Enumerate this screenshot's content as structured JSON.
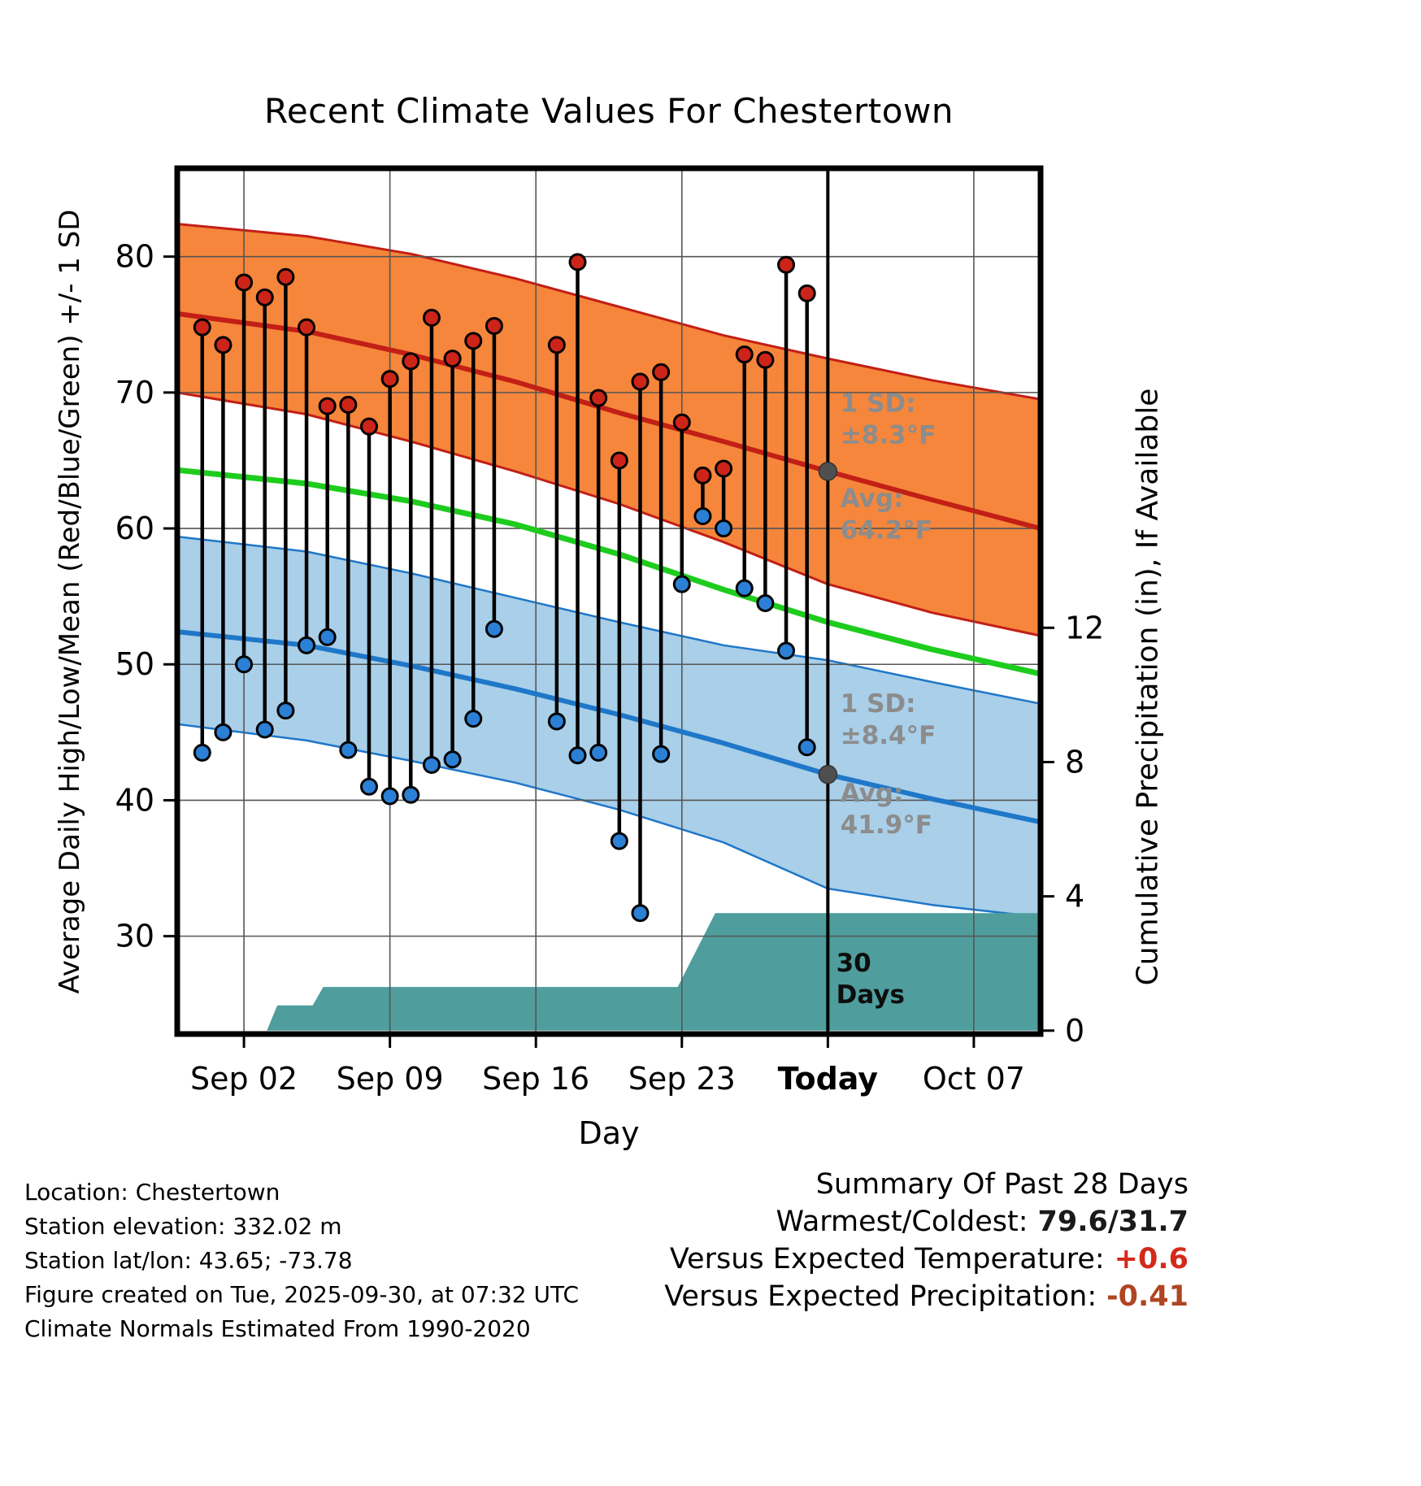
{
  "title": "Recent Climate Values For Chestertown",
  "axes": {
    "y_left_label": "Average Daily High/Low/Mean (Red/Blue/Green) +/- 1 SD",
    "y_right_label": "Cumulative Precipitation (in), If Available",
    "x_label": "Day"
  },
  "footer_lines": [
    "Location: Chestertown",
    "Station elevation: 332.02 m",
    "Station lat/lon: 43.65; -73.78",
    "Figure created on Tue, 2025-09-30, at 07:32 UTC",
    "Climate Normals Estimated From 1990-2020"
  ],
  "summary": {
    "title": "Summary Of Past 28 Days",
    "rows": [
      {
        "label": "Warmest/Coldest:",
        "value": "79.6/31.7",
        "color": "#1a1a1a"
      },
      {
        "label": "Versus Expected Temperature:",
        "value": "+0.6",
        "color": "#d42a1a"
      },
      {
        "label": "Versus Expected Precipitation:",
        "value": "-0.41",
        "color": "#af4523"
      }
    ]
  },
  "chart_data": {
    "type": "line",
    "title": "Recent Climate Values For Chestertown",
    "x_range": [
      -1.2,
      40.2
    ],
    "temp_range": [
      22.8,
      86.5
    ],
    "x_ticks": [
      {
        "day": 2,
        "label": "Sep 02",
        "bold": false
      },
      {
        "day": 9,
        "label": "Sep 09",
        "bold": false
      },
      {
        "day": 16,
        "label": "Sep 16",
        "bold": false
      },
      {
        "day": 23,
        "label": "Sep 23",
        "bold": false
      },
      {
        "day": 30,
        "label": "Today",
        "bold": true
      },
      {
        "day": 37,
        "label": "Oct 07",
        "bold": false
      }
    ],
    "temp_ticks": [
      30,
      40,
      50,
      60,
      70,
      80
    ],
    "precip_ticks": [
      0,
      4,
      8,
      12
    ],
    "precip_axis": {
      "zero_temp": 23.05,
      "temp_per_inch": 2.47
    },
    "today_day": 30,
    "series": {
      "avg_high": [
        [
          -1.2,
          75.8
        ],
        [
          5,
          74.5
        ],
        [
          10,
          72.8
        ],
        [
          15,
          70.8
        ],
        [
          20,
          68.5
        ],
        [
          25,
          66.4
        ],
        [
          30,
          64.2
        ],
        [
          35,
          62.1
        ],
        [
          40.2,
          60.0
        ]
      ],
      "avg_high_upper": [
        [
          -1.2,
          82.4
        ],
        [
          5,
          81.5
        ],
        [
          10,
          80.2
        ],
        [
          15,
          78.4
        ],
        [
          20,
          76.3
        ],
        [
          25,
          74.2
        ],
        [
          30,
          72.5
        ],
        [
          35,
          70.9
        ],
        [
          40.2,
          69.5
        ]
      ],
      "avg_high_lower": [
        [
          -1.2,
          70.0
        ],
        [
          5,
          68.4
        ],
        [
          10,
          66.4
        ],
        [
          15,
          64.2
        ],
        [
          20,
          61.8
        ],
        [
          25,
          59.0
        ],
        [
          30,
          55.9
        ],
        [
          35,
          53.8
        ],
        [
          40.2,
          52.1
        ]
      ],
      "avg_mean": [
        [
          -1.2,
          64.3
        ],
        [
          5,
          63.3
        ],
        [
          10,
          62.0
        ],
        [
          15,
          60.3
        ],
        [
          20,
          58.1
        ],
        [
          25,
          55.5
        ],
        [
          30,
          53.1
        ],
        [
          35,
          51.1
        ],
        [
          40.2,
          49.3
        ]
      ],
      "avg_low": [
        [
          -1.2,
          52.4
        ],
        [
          5,
          51.4
        ],
        [
          10,
          49.9
        ],
        [
          15,
          48.2
        ],
        [
          20,
          46.3
        ],
        [
          25,
          44.2
        ],
        [
          30,
          41.9
        ],
        [
          35,
          40.1
        ],
        [
          40.2,
          38.4
        ]
      ],
      "avg_low_upper": [
        [
          -1.2,
          59.4
        ],
        [
          5,
          58.3
        ],
        [
          10,
          56.7
        ],
        [
          15,
          54.9
        ],
        [
          20,
          53.1
        ],
        [
          25,
          51.4
        ],
        [
          30,
          50.3
        ],
        [
          35,
          48.7
        ],
        [
          40.2,
          47.1
        ]
      ],
      "avg_low_lower": [
        [
          -1.2,
          45.6
        ],
        [
          5,
          44.4
        ],
        [
          10,
          42.9
        ],
        [
          15,
          41.3
        ],
        [
          20,
          39.3
        ],
        [
          25,
          36.9
        ],
        [
          30,
          33.5
        ],
        [
          35,
          32.3
        ],
        [
          40.2,
          31.4
        ]
      ]
    },
    "daily": [
      {
        "day": 0,
        "high": 74.8,
        "low": 43.5
      },
      {
        "day": 1,
        "high": 73.5,
        "low": 45.0
      },
      {
        "day": 2,
        "high": 78.1,
        "low": 50.0
      },
      {
        "day": 3,
        "high": 77.0,
        "low": 45.2
      },
      {
        "day": 4,
        "high": 78.5,
        "low": 46.6
      },
      {
        "day": 5,
        "high": 74.8,
        "low": 51.4
      },
      {
        "day": 6,
        "high": 69.0,
        "low": 52.0
      },
      {
        "day": 7,
        "high": 69.1,
        "low": 43.7
      },
      {
        "day": 8,
        "high": 67.5,
        "low": 41.0
      },
      {
        "day": 9,
        "high": 71.0,
        "low": 40.3
      },
      {
        "day": 10,
        "high": 72.3,
        "low": 40.4
      },
      {
        "day": 11,
        "high": 75.5,
        "low": 42.6
      },
      {
        "day": 12,
        "high": 72.5,
        "low": 43.0
      },
      {
        "day": 13,
        "high": 73.8,
        "low": 46.0
      },
      {
        "day": 14,
        "high": 74.9,
        "low": 52.6
      },
      {
        "day": 17,
        "high": 73.5,
        "low": 45.8
      },
      {
        "day": 18,
        "high": 79.6,
        "low": 43.3
      },
      {
        "day": 19,
        "high": 69.6,
        "low": 43.5
      },
      {
        "day": 20,
        "high": 65.0,
        "low": 37.0
      },
      {
        "day": 21,
        "high": 70.8,
        "low": 31.7
      },
      {
        "day": 22,
        "high": 71.5,
        "low": 43.4
      },
      {
        "day": 23,
        "high": 67.8,
        "low": 55.9
      },
      {
        "day": 24,
        "high": 63.9,
        "low": 60.9
      },
      {
        "day": 25,
        "high": 64.4,
        "low": 60.0
      },
      {
        "day": 26,
        "high": 72.8,
        "low": 55.6
      },
      {
        "day": 27,
        "high": 72.4,
        "low": 54.5
      },
      {
        "day": 28,
        "high": 79.4,
        "low": 51.0
      },
      {
        "day": 29,
        "high": 77.3,
        "low": 43.9
      }
    ],
    "precip_cumulative": [
      [
        -1.2,
        0
      ],
      [
        3.1,
        0
      ],
      [
        3.6,
        0.75
      ],
      [
        5.3,
        0.75
      ],
      [
        5.8,
        1.3
      ],
      [
        22.8,
        1.3
      ],
      [
        24.6,
        3.5
      ],
      [
        40.2,
        3.5
      ]
    ],
    "avg_markers": [
      {
        "day": 30,
        "temp": 64.2
      },
      {
        "day": 30,
        "temp": 41.9
      }
    ],
    "annotations": [
      {
        "day": 30.6,
        "temp": 68.6,
        "lines": [
          "1 SD:",
          "±8.3°F"
        ],
        "color": "#8c8c8c"
      },
      {
        "day": 30.6,
        "temp": 61.6,
        "lines": [
          "Avg:",
          "64.2°F"
        ],
        "color": "#8c8c8c"
      },
      {
        "day": 30.6,
        "temp": 46.5,
        "lines": [
          "1 SD:",
          "±8.4°F"
        ],
        "color": "#8c8c8c"
      },
      {
        "day": 30.6,
        "temp": 39.9,
        "lines": [
          "Avg:",
          "41.9°F"
        ],
        "color": "#8c8c8c"
      },
      {
        "day": 30.4,
        "temp": 27.4,
        "lines": [
          "30",
          "Days"
        ],
        "color": "#0d0d0d"
      }
    ],
    "colors": {
      "high_band": "#F5863B",
      "high_line": "#C21F16",
      "low_band": "#A9CFE9",
      "low_line": "#1F77C8",
      "mean_line": "#1ECC1E",
      "precip_fill": "#4F9D9D",
      "high_dot": "#CC2418",
      "low_dot": "#2B80D5",
      "stem": "#000000",
      "avg_marker": "#4F4F4F",
      "grid": "#555555"
    }
  }
}
